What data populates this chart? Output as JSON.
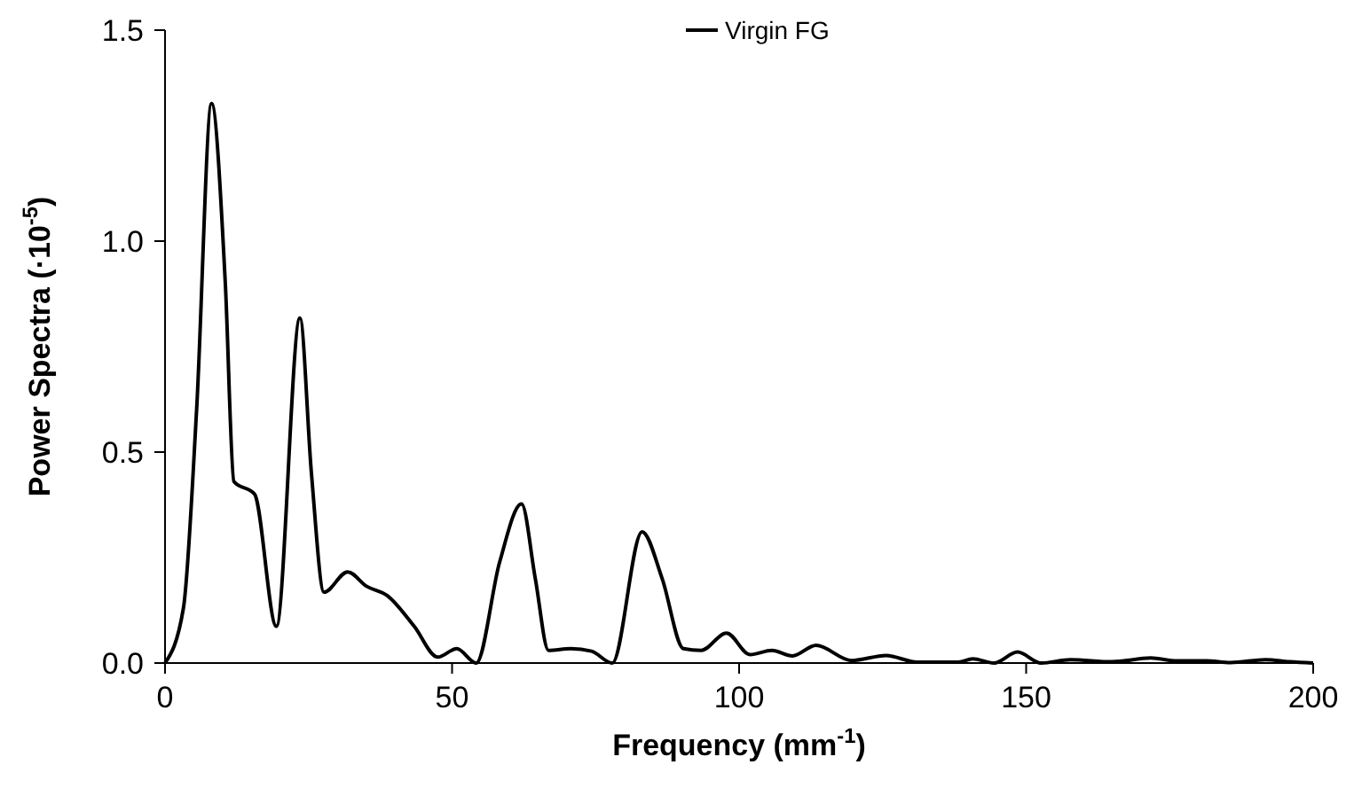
{
  "chart_data": {
    "type": "line",
    "xlabel": "Frequency (mm$^{-1}$)",
    "ylabel": "Power Spectra (·10$^{-5}$)",
    "xlim": [
      0,
      200
    ],
    "ylim": [
      0,
      1.5
    ],
    "xticks": [
      0,
      50,
      100,
      150,
      200
    ],
    "yticks": [
      {
        "value": 0,
        "label": "0.0"
      },
      {
        "value": 0.5,
        "label": "0.5"
      },
      {
        "value": 1,
        "label": "1.0"
      },
      {
        "value": 1.5,
        "label": "1.5"
      }
    ],
    "grid": false,
    "legend": "top",
    "marker": "none",
    "line_style": "solid",
    "series": [
      {
        "name": "Virgin FG",
        "color": "#000000",
        "x": [
          0,
          3.2,
          5.5,
          8.1,
          10.5,
          12,
          15.6,
          19.4,
          23.5,
          25.5,
          27.7,
          31.8,
          35.1,
          38.7,
          43.4,
          47.5,
          50.8,
          54.2,
          58.3,
          62.1,
          64.5,
          66.8,
          70.7,
          74.3,
          77.9,
          83.1,
          86.6,
          90.3,
          93.4,
          97.8,
          101.9,
          105.7,
          109.3,
          113.4,
          119.6,
          125.6,
          131,
          138.2,
          140.7,
          144.4,
          148.5,
          152.6,
          157.7,
          165,
          171.7,
          176.3,
          181.4,
          185.6,
          191.7,
          195.9,
          200
        ],
        "values": [
          0,
          0.13,
          0.6,
          1.326,
          0.9,
          0.43,
          0.4,
          0.087,
          0.818,
          0.45,
          0.168,
          0.216,
          0.182,
          0.16,
          0.087,
          0.014,
          0.034,
          0,
          0.24,
          0.377,
          0.2,
          0.03,
          0.034,
          0.028,
          0,
          0.311,
          0.2,
          0.034,
          0.03,
          0.071,
          0.02,
          0.03,
          0.017,
          0.042,
          0.006,
          0.018,
          0.002,
          0.002,
          0.01,
          0,
          0.026,
          0,
          0.008,
          0.003,
          0.012,
          0.005,
          0.005,
          0.001,
          0.008,
          0.003,
          0
        ]
      }
    ]
  }
}
